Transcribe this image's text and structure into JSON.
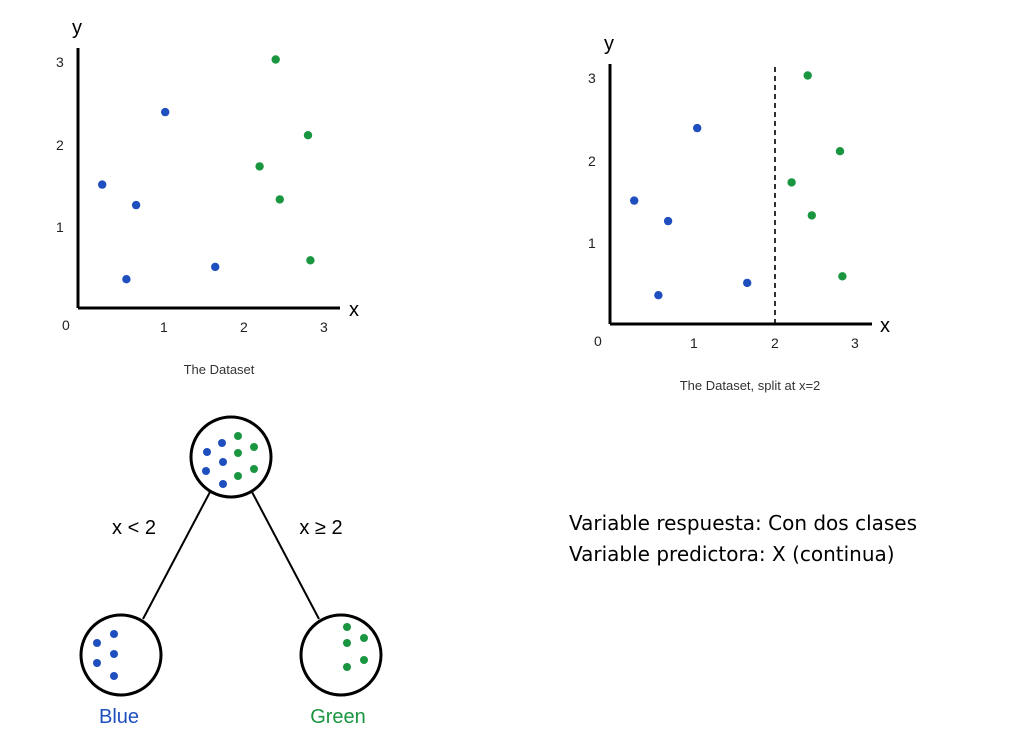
{
  "colors": {
    "blue": "#1f4fbf",
    "green": "#1a9641",
    "axis": "#000000"
  },
  "chart_data": [
    {
      "type": "scatter",
      "title": "The Dataset",
      "xlabel": "x",
      "ylabel": "y",
      "xticks": [
        "0",
        "1",
        "2",
        "3"
      ],
      "yticks": [
        "1",
        "2",
        "3"
      ],
      "xlim": [
        0,
        3.2
      ],
      "ylim": [
        0,
        3.2
      ],
      "series": [
        {
          "color": "blue",
          "x": [
            0.3,
            0.6,
            0.72,
            1.08,
            1.7
          ],
          "y": [
            1.5,
            0.35,
            1.25,
            2.38,
            0.5
          ]
        },
        {
          "color": "green",
          "x": [
            2.25,
            2.45,
            2.5,
            2.85,
            2.88
          ],
          "y": [
            1.72,
            3.02,
            1.32,
            2.1,
            0.58
          ]
        }
      ]
    },
    {
      "type": "scatter",
      "title": "The Dataset, split at x=2",
      "xlabel": "x",
      "ylabel": "y",
      "xticks": [
        "0",
        "1",
        "2",
        "3"
      ],
      "yticks": [
        "1",
        "2",
        "3"
      ],
      "xlim": [
        0,
        3.2
      ],
      "ylim": [
        0,
        3.2
      ],
      "split_x": 2,
      "series": [
        {
          "color": "blue",
          "x": [
            0.3,
            0.6,
            0.72,
            1.08,
            1.7
          ],
          "y": [
            1.5,
            0.35,
            1.25,
            2.38,
            0.5
          ]
        },
        {
          "color": "green",
          "x": [
            2.25,
            2.45,
            2.5,
            2.85,
            2.88
          ],
          "y": [
            1.72,
            3.02,
            1.32,
            2.1,
            0.58
          ]
        }
      ]
    }
  ],
  "tree": {
    "left_condition": "x < 2",
    "right_condition": "x ≥ 2",
    "left_leaf": "Blue",
    "right_leaf": "Green"
  },
  "notes": {
    "line1": "Variable respuesta: Con dos clases",
    "line2": "Variable predictora: X (continua)"
  }
}
